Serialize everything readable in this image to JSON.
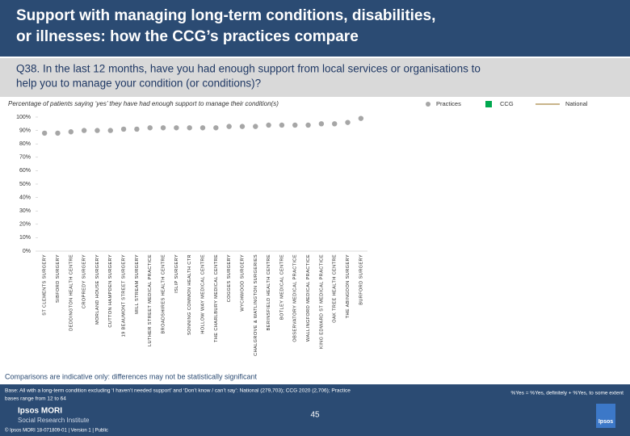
{
  "header": {
    "title_lines": [
      "Support with managing long-term conditions, disabilities,",
      "or illnesses: how the CCG’s practices compare"
    ],
    "question_lines": [
      "Q38. In the last 12 months, have you had enough support from local services or organisations to",
      "help you to manage your condition (or conditions)?"
    ]
  },
  "chart_data": {
    "type": "scatter",
    "subtitle": "Percentage of patients saying ‘yes’ they have had enough support to manage their condition(s)",
    "categories": [
      "ST CLEMENTS SURGERY",
      "SIBFORD SURGERY",
      "DEDDINGTON HEALTH CENTRE",
      "CROPREDY SURGERY",
      "MORLAND HOUSE SURGERY",
      "CUTTON HAMPDEN SURGERY",
      "19 BEAUMONT STREET SURGERY",
      "MILL STREAM SURGERY",
      "LUTHER STREET MEDICAL PRACTICE",
      "BROADSHIRES HEALTH CENTRE",
      "ISLIP SURGERY",
      "SONNING COMMON HEALTH CTR",
      "HOLLOW WAY MEDICAL CENTRE",
      "THE CHARLBURY MEDICAL CENTRE",
      "COGGES SURGERY",
      "WYCHWOOD SURGERY",
      "CHALGROVE & WATLINGTON SURGERIES",
      "BERINSFIELD HEALTH CENTRE",
      "BOTLEY MEDICAL CENTRE",
      "OBSERVATORY MEDICAL PRACTICE",
      "WALLINGFORD MEDICAL PRACTICE",
      "KING EDWARD ST MEDICAL PRACTICE",
      "OAK TREE HEALTH CENTRE",
      "THE ABINGDON SURGERY",
      "BURFORD SURGERY"
    ],
    "series": [
      {
        "name": "Practices",
        "color": "#a6a6a6",
        "values": [
          88,
          88,
          89,
          90,
          90,
          90,
          91,
          91,
          92,
          92,
          92,
          92,
          92,
          92,
          93,
          93,
          93,
          94,
          94,
          94,
          94,
          95,
          95,
          96,
          99
        ]
      }
    ],
    "legend": [
      {
        "name": "CCG",
        "color": "#00a84f"
      },
      {
        "name": "National",
        "color": "#c9b48a"
      }
    ],
    "ylim": [
      0,
      100
    ],
    "yticks": [
      {
        "value": 0,
        "label": "0%"
      },
      {
        "value": 10,
        "label": "10%"
      },
      {
        "value": 20,
        "label": "20%"
      },
      {
        "value": 30,
        "label": "30%"
      },
      {
        "value": 40,
        "label": "40%"
      },
      {
        "value": 50,
        "label": "50%"
      },
      {
        "value": 60,
        "label": "60%"
      },
      {
        "value": 70,
        "label": "70%"
      },
      {
        "value": 80,
        "label": "80%"
      },
      {
        "value": 90,
        "label": "90%"
      },
      {
        "value": 100,
        "label": "100%"
      }
    ],
    "note": "Comparisons are indicative only: differences may not be statistically significant"
  },
  "footer": {
    "base_lines": [
      "Base: All with a long-term condition excluding ‘I haven’t needed support’ and ‘Don’t know / can’t say’: National (279,703); CCG 2020 (2,706); Practice",
      "bases range from 12 to 64"
    ],
    "definition": "%Yes = %Yes, definitely + %Yes, to some extent",
    "page": "45",
    "brand_lines": [
      "Ipsos MORI",
      "Social Research Institute"
    ],
    "logo": "Ipsos",
    "copyright": "© Ipsos MORI    18-071809-01 | Version 1 | Public"
  }
}
